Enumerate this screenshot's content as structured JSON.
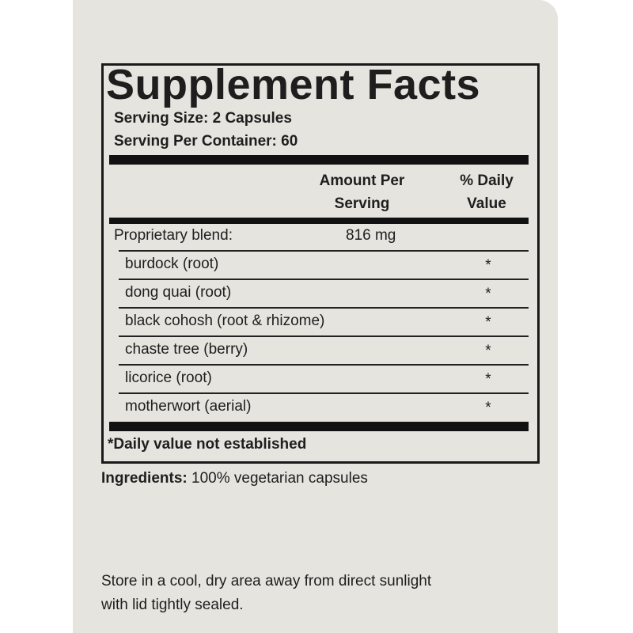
{
  "header": {
    "title": "Supplement Facts",
    "serving_size": "Serving Size: 2 Capsules",
    "servings_per_container": "Serving Per Container: 60"
  },
  "table": {
    "columns": [
      "Amount Per Serving",
      "% Daily Value"
    ],
    "blend": {
      "name": "Proprietary blend:",
      "amount": "816 mg"
    },
    "rows": [
      [
        "burdock (root)",
        "*"
      ],
      [
        "dong quai (root)",
        "*"
      ],
      [
        "black cohosh (root & rhizome)",
        "*"
      ],
      [
        "chaste tree (berry)",
        "*"
      ],
      [
        "licorice (root)",
        "*"
      ],
      [
        "motherwort (aerial)",
        "*"
      ]
    ]
  },
  "footnote": "*Daily value not established",
  "ingredients": {
    "label": "Ingredients:",
    "text": "100% vegetarian capsules"
  },
  "storage": "Store in a cool, dry area away from direct sunlight with lid tightly sealed."
}
